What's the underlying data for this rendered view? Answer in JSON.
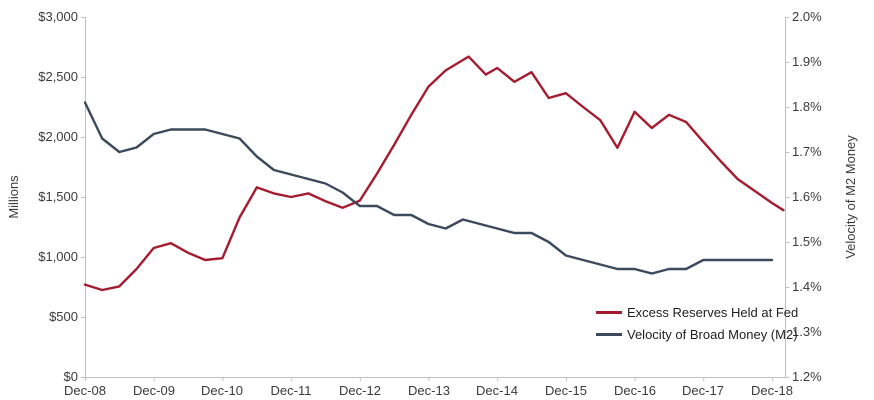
{
  "chart_data": {
    "type": "line",
    "title": "",
    "left_axis": {
      "label": "Millions",
      "ticks": [
        "$3,000",
        "$2,500",
        "$2,000",
        "$1,500",
        "$1,000",
        "$500",
        "$0"
      ],
      "range": [
        0,
        3000
      ]
    },
    "right_axis": {
      "label": "Velocity of M2 Money",
      "ticks": [
        "2.0%",
        "1.9%",
        "1.8%",
        "1.7%",
        "1.6%",
        "1.5%",
        "1.4%",
        "1.3%",
        "1.2%"
      ],
      "range": [
        1.2,
        2.0
      ]
    },
    "x_axis": {
      "ticks": [
        "Dec-08",
        "Dec-09",
        "Dec-10",
        "Dec-11",
        "Dec-12",
        "Dec-13",
        "Dec-14",
        "Dec-15",
        "Dec-16",
        "Dec-17",
        "Dec-18"
      ]
    },
    "grid": "off",
    "legend_position": "inside bottom-right",
    "series": [
      {
        "name": "Excess Reserves Held at Fed",
        "axis": "left",
        "color": "#A51C30",
        "points": [
          [
            "Dec-08",
            770
          ],
          [
            "Mar-09",
            725
          ],
          [
            "Jun-09",
            755
          ],
          [
            "Sep-09",
            900
          ],
          [
            "Dec-09",
            1075
          ],
          [
            "Mar-10",
            1115
          ],
          [
            "Jun-10",
            1035
          ],
          [
            "Sep-10",
            975
          ],
          [
            "Dec-10",
            990
          ],
          [
            "Mar-11",
            1330
          ],
          [
            "Jun-11",
            1580
          ],
          [
            "Sep-11",
            1530
          ],
          [
            "Dec-11",
            1500
          ],
          [
            "Mar-12",
            1530
          ],
          [
            "Jun-12",
            1465
          ],
          [
            "Sep-12",
            1410
          ],
          [
            "Dec-12",
            1470
          ],
          [
            "Mar-13",
            1695
          ],
          [
            "Jun-13",
            1935
          ],
          [
            "Sep-13",
            2185
          ],
          [
            "Dec-13",
            2420
          ],
          [
            "Mar-14",
            2555
          ],
          [
            "Jul-14",
            2670
          ],
          [
            "Oct-14",
            2520
          ],
          [
            "Dec-14",
            2575
          ],
          [
            "Mar-15",
            2460
          ],
          [
            "Jun-15",
            2540
          ],
          [
            "Sep-15",
            2325
          ],
          [
            "Dec-15",
            2365
          ],
          [
            "Mar-16",
            2250
          ],
          [
            "Jun-16",
            2140
          ],
          [
            "Sep-16",
            1910
          ],
          [
            "Dec-16",
            2210
          ],
          [
            "Mar-17",
            2075
          ],
          [
            "Jun-17",
            2185
          ],
          [
            "Sep-17",
            2125
          ],
          [
            "Dec-17",
            1960
          ],
          [
            "Mar-18",
            1800
          ],
          [
            "Jun-18",
            1650
          ],
          [
            "Sep-18",
            1550
          ],
          [
            "Dec-18",
            1450
          ],
          [
            "Feb-19",
            1390
          ]
        ]
      },
      {
        "name": "Velocity of Broad Money (M2)",
        "axis": "right",
        "color": "#3B4A5C",
        "points": [
          [
            "Dec-08",
            1.81
          ],
          [
            "Mar-09",
            1.73
          ],
          [
            "Jun-09",
            1.7
          ],
          [
            "Sep-09",
            1.71
          ],
          [
            "Dec-09",
            1.74
          ],
          [
            "Mar-10",
            1.75
          ],
          [
            "Jun-10",
            1.75
          ],
          [
            "Sep-10",
            1.75
          ],
          [
            "Dec-10",
            1.74
          ],
          [
            "Mar-11",
            1.73
          ],
          [
            "Jun-11",
            1.69
          ],
          [
            "Sep-11",
            1.66
          ],
          [
            "Dec-11",
            1.65
          ],
          [
            "Mar-12",
            1.64
          ],
          [
            "Jun-12",
            1.63
          ],
          [
            "Sep-12",
            1.61
          ],
          [
            "Dec-12",
            1.58
          ],
          [
            "Mar-13",
            1.58
          ],
          [
            "Jun-13",
            1.56
          ],
          [
            "Sep-13",
            1.56
          ],
          [
            "Dec-13",
            1.54
          ],
          [
            "Mar-14",
            1.53
          ],
          [
            "Jun-14",
            1.55
          ],
          [
            "Sep-14",
            1.54
          ],
          [
            "Dec-14",
            1.53
          ],
          [
            "Mar-15",
            1.52
          ],
          [
            "Jun-15",
            1.52
          ],
          [
            "Sep-15",
            1.5
          ],
          [
            "Dec-15",
            1.47
          ],
          [
            "Mar-16",
            1.46
          ],
          [
            "Jun-16",
            1.45
          ],
          [
            "Sep-16",
            1.44
          ],
          [
            "Dec-16",
            1.44
          ],
          [
            "Mar-17",
            1.43
          ],
          [
            "Jun-17",
            1.44
          ],
          [
            "Sep-17",
            1.44
          ],
          [
            "Dec-17",
            1.46
          ],
          [
            "Mar-18",
            1.46
          ],
          [
            "Jun-18",
            1.46
          ],
          [
            "Sep-18",
            1.46
          ],
          [
            "Dec-18",
            1.46
          ]
        ]
      }
    ]
  },
  "colors": {
    "axis_line": "#BFBFBF",
    "tick_text": "#3b3b3b",
    "legend_text": "#1f1f1f"
  }
}
